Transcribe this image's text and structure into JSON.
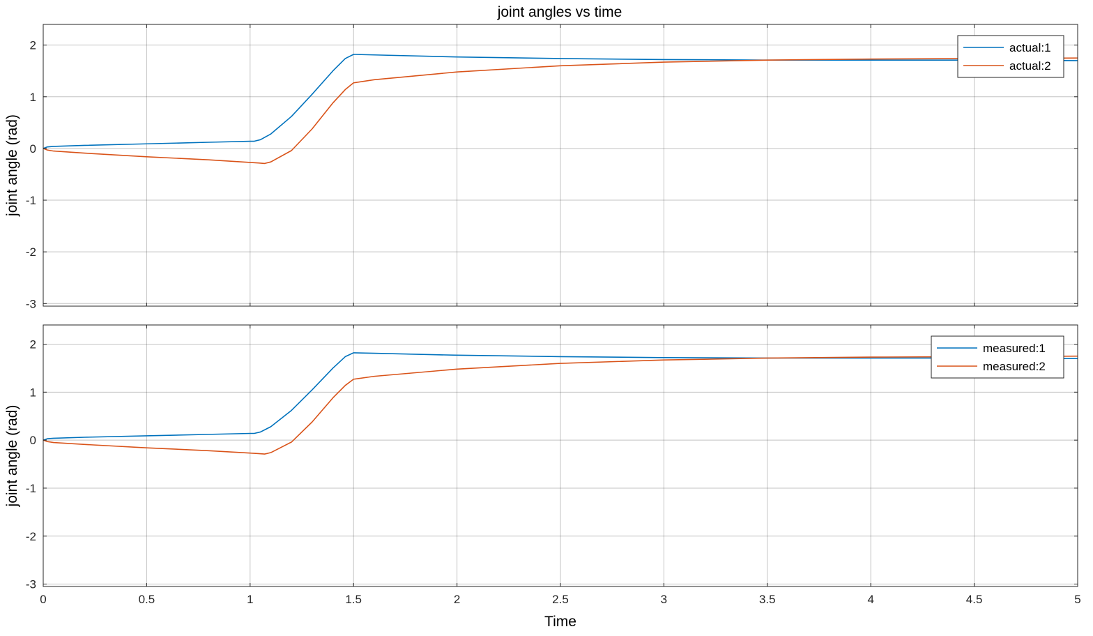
{
  "figure_title": "joint angles vs time",
  "colors": {
    "series1": "#0072BD",
    "series2": "#D95319",
    "grid": "#262626",
    "axes": "#262626"
  },
  "chart_data": [
    {
      "type": "line",
      "title": "joint angles vs time",
      "xlabel": "",
      "ylabel": "joint angle (rad)",
      "xlim": [
        0,
        5
      ],
      "ylim": [
        -3.05,
        2.4
      ],
      "x_ticks": [
        0,
        0.5,
        1,
        1.5,
        2,
        2.5,
        3,
        3.5,
        4,
        4.5,
        5
      ],
      "y_ticks": [
        -3,
        -2,
        -1,
        0,
        1,
        2
      ],
      "y_tick_labels": [
        "-3",
        "-2",
        "-1",
        "0",
        "1",
        "2"
      ],
      "show_x_tick_labels": false,
      "grid": true,
      "legend_position": "top-right",
      "series": [
        {
          "name": "actual:1",
          "color": "#0072BD",
          "x": [
            0,
            0.02,
            0.05,
            0.2,
            0.5,
            0.8,
            1.0,
            1.02,
            1.05,
            1.1,
            1.2,
            1.3,
            1.4,
            1.46,
            1.5,
            1.6,
            2.0,
            2.5,
            3.0,
            3.5,
            4.0,
            4.5,
            5.0
          ],
          "y": [
            0,
            0.03,
            0.04,
            0.06,
            0.09,
            0.12,
            0.14,
            0.14,
            0.17,
            0.28,
            0.62,
            1.05,
            1.5,
            1.74,
            1.82,
            1.81,
            1.77,
            1.74,
            1.72,
            1.71,
            1.71,
            1.71,
            1.7
          ]
        },
        {
          "name": "actual:2",
          "color": "#D95319",
          "x": [
            0,
            0.02,
            0.05,
            0.2,
            0.5,
            0.8,
            1.0,
            1.04,
            1.07,
            1.1,
            1.2,
            1.3,
            1.4,
            1.46,
            1.5,
            1.6,
            2.0,
            2.5,
            3.0,
            3.5,
            4.0,
            4.5,
            5.0
          ],
          "y": [
            0,
            -0.03,
            -0.05,
            -0.09,
            -0.16,
            -0.22,
            -0.27,
            -0.28,
            -0.29,
            -0.26,
            -0.04,
            0.38,
            0.88,
            1.14,
            1.27,
            1.33,
            1.48,
            1.6,
            1.67,
            1.71,
            1.73,
            1.74,
            1.75
          ]
        }
      ]
    },
    {
      "type": "line",
      "title": "",
      "xlabel": "Time",
      "ylabel": "joint angle (rad)",
      "xlim": [
        0,
        5
      ],
      "ylim": [
        -3.05,
        2.4
      ],
      "x_ticks": [
        0,
        0.5,
        1,
        1.5,
        2,
        2.5,
        3,
        3.5,
        4,
        4.5,
        5
      ],
      "x_tick_labels": [
        "0",
        "0.5",
        "1",
        "1.5",
        "2",
        "2.5",
        "3",
        "3.5",
        "4",
        "4.5",
        "5"
      ],
      "y_ticks": [
        -3,
        -2,
        -1,
        0,
        1,
        2
      ],
      "y_tick_labels": [
        "-3",
        "-2",
        "-1",
        "0",
        "1",
        "2"
      ],
      "show_x_tick_labels": true,
      "grid": true,
      "legend_position": "top-right",
      "series": [
        {
          "name": "measured:1",
          "color": "#0072BD",
          "x": [
            0,
            0.02,
            0.05,
            0.2,
            0.5,
            0.8,
            1.0,
            1.02,
            1.05,
            1.1,
            1.2,
            1.3,
            1.4,
            1.46,
            1.5,
            1.6,
            2.0,
            2.5,
            3.0,
            3.5,
            4.0,
            4.5,
            5.0
          ],
          "y": [
            0,
            0.03,
            0.04,
            0.06,
            0.09,
            0.12,
            0.14,
            0.14,
            0.17,
            0.28,
            0.62,
            1.05,
            1.5,
            1.74,
            1.82,
            1.81,
            1.77,
            1.74,
            1.72,
            1.71,
            1.71,
            1.71,
            1.7
          ]
        },
        {
          "name": "measured:2",
          "color": "#D95319",
          "x": [
            0,
            0.02,
            0.05,
            0.2,
            0.5,
            0.8,
            1.0,
            1.04,
            1.07,
            1.1,
            1.2,
            1.3,
            1.4,
            1.46,
            1.5,
            1.6,
            2.0,
            2.5,
            3.0,
            3.5,
            4.0,
            4.5,
            5.0
          ],
          "y": [
            0,
            -0.03,
            -0.05,
            -0.09,
            -0.16,
            -0.22,
            -0.27,
            -0.28,
            -0.29,
            -0.26,
            -0.04,
            0.38,
            0.88,
            1.14,
            1.27,
            1.33,
            1.48,
            1.6,
            1.67,
            1.71,
            1.73,
            1.74,
            1.75
          ]
        }
      ]
    }
  ]
}
